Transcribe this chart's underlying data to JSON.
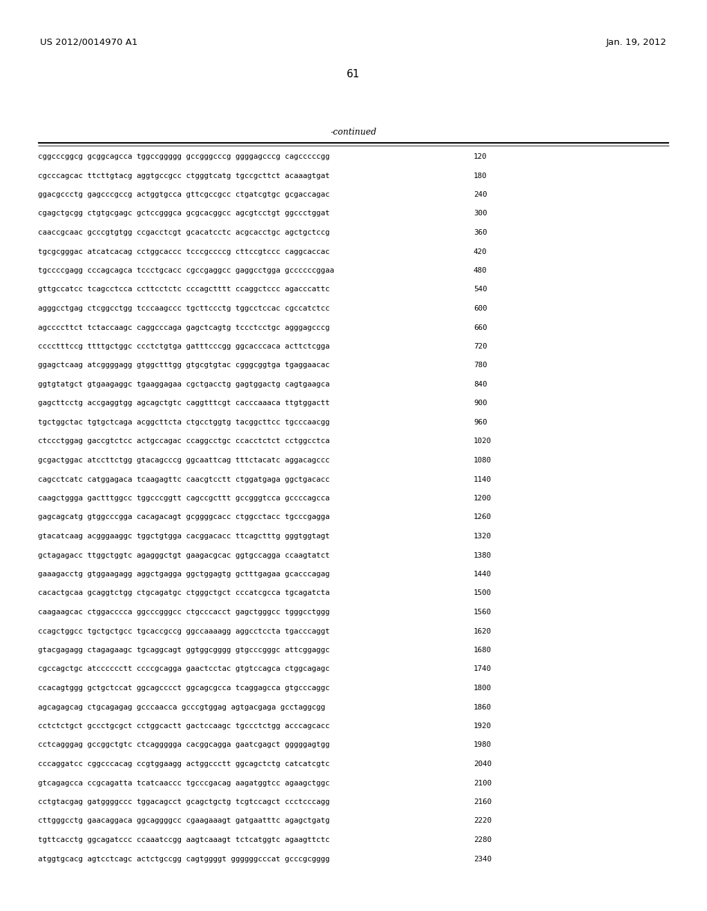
{
  "header_left": "US 2012/0014970 A1",
  "header_right": "Jan. 19, 2012",
  "page_number": "61",
  "continued_label": "-continued",
  "background_color": "#ffffff",
  "text_color": "#000000",
  "rows": [
    {
      "seq": "cggcccggcg gcggcagcca tggccggggg gccgggcccg ggggagcccg cagcccccgg",
      "num": "120"
    },
    {
      "seq": "cgcccagcac ttcttgtacg aggtgccgcc ctgggtcatg tgccgcttct acaaagtgat",
      "num": "180"
    },
    {
      "seq": "ggacgccctg gagcccgccg actggtgcca gttcgccgcc ctgatcgtgc gcgaccagac",
      "num": "240"
    },
    {
      "seq": "cgagctgcgg ctgtgcgagc gctccgggca gcgcacggcc agcgtcctgt ggccctggat",
      "num": "300"
    },
    {
      "seq": "caaccgcaac gcccgtgtgg ccgacctcgt gcacatcctc acgcacctgc agctgctccg",
      "num": "360"
    },
    {
      "seq": "tgcgcgggac atcatcacag cctggcaccc tcccgccccg cttccgtccc caggcaccac",
      "num": "420"
    },
    {
      "seq": "tgccccgagg cccagcagca tccctgcacc cgccgaggcc gaggcctgga gccccccggaa",
      "num": "480"
    },
    {
      "seq": "gttgccatcc tcagcctcca ccttcctctc cccagctttt ccaggctccc agacccattc",
      "num": "540"
    },
    {
      "seq": "agggcctgag ctcggcctgg tcccaagccc tgcttccctg tggcctccac cgccatctcc",
      "num": "600"
    },
    {
      "seq": "agccccttct tctaccaagc caggcccaga gagctcagtg tccctcctgc agggagcccg",
      "num": "660"
    },
    {
      "seq": "cccctttccg ttttgctggc ccctctgtga gatttcccgg ggcacccaca acttctcgga",
      "num": "720"
    },
    {
      "seq": "ggagctcaag atcggggagg gtggctttgg gtgcgtgtac cgggcggtga tgaggaacac",
      "num": "780"
    },
    {
      "seq": "ggtgtatgct gtgaagaggc tgaaggagaa cgctgacctg gagtggactg cagtgaagca",
      "num": "840"
    },
    {
      "seq": "gagcttcctg accgaggtgg agcagctgtc caggtttcgt cacccaaaca ttgtggactt",
      "num": "900"
    },
    {
      "seq": "tgctggctac tgtgctcaga acggcttcta ctgcctggtg tacggcttcc tgcccaacgg",
      "num": "960"
    },
    {
      "seq": "ctccctggag gaccgtctcc actgccagac ccaggcctgc ccacctctct cctggcctca",
      "num": "1020"
    },
    {
      "seq": "gcgactggac atccttctgg gtacagcccg ggcaattcag tttctacatc aggacagccc",
      "num": "1080"
    },
    {
      "seq": "cagcctcatc catggagaca tcaagagttc caacgtcctt ctggatgaga ggctgacacc",
      "num": "1140"
    },
    {
      "seq": "caagctggga gactttggcc tggcccggtt cagccgcttt gccgggtcca gccccagcca",
      "num": "1200"
    },
    {
      "seq": "gagcagcatg gtggcccgga cacagacagt gcggggcacc ctggcctacc tgcccgagga",
      "num": "1260"
    },
    {
      "seq": "gtacatcaag acgggaaggc tggctgtgga cacggacacc ttcagctttg gggtggtagt",
      "num": "1320"
    },
    {
      "seq": "gctagagacc ttggctggtc agagggctgt gaagacgcac ggtgccagga ccaagtatct",
      "num": "1380"
    },
    {
      "seq": "gaaagacctg gtggaagagg aggctgagga ggctggagtg gctttgagaa gcacccagag",
      "num": "1440"
    },
    {
      "seq": "cacactgcaa gcaggtctgg ctgcagatgc ctgggctgct cccatcgcca tgcagatcta",
      "num": "1500"
    },
    {
      "seq": "caagaagcac ctggacccca ggcccgggcc ctgcccacct gagctgggcc tgggcctggg",
      "num": "1560"
    },
    {
      "seq": "ccagctggcc tgctgctgcc tgcaccgccg ggccaaaagg aggcctccta tgacccaggt",
      "num": "1620"
    },
    {
      "seq": "gtacgagagg ctagagaagc tgcaggcagt ggtggcgggg gtgcccgggc attcggaggc",
      "num": "1680"
    },
    {
      "seq": "cgccagctgc atcccccctt ccccgcagga gaactcctac gtgtccagca ctggcagagc",
      "num": "1740"
    },
    {
      "seq": "ccacagtggg gctgctccat ggcagcccct ggcagcgcca tcaggagcca gtgcccaggc",
      "num": "1800"
    },
    {
      "seq": "agcagagcag ctgcagagag gcccaacca gcccgtggag agtgacgaga gcctaggcgg",
      "num": "1860"
    },
    {
      "seq": "cctctctgct gccctgcgct cctggcactt gactccaagc tgccctctgg acccagcacc",
      "num": "1920"
    },
    {
      "seq": "cctcagggag gccggctgtc ctcaggggga cacggcagga gaatcgagct gggggagtgg",
      "num": "1980"
    },
    {
      "seq": "cccaggatcc cggcccacag ccgtggaagg actggccctt ggcagctctg catcatcgtc",
      "num": "2040"
    },
    {
      "seq": "gtcagagcca ccgcagatta tcatcaaccc tgcccgacag aagatggtcc agaagctggc",
      "num": "2100"
    },
    {
      "seq": "cctgtacgag gatggggccc tggacagcct gcagctgctg tcgtccagct ccctcccagg",
      "num": "2160"
    },
    {
      "seq": "cttgggcctg gaacaggaca ggcaggggcc cgaagaaagt gatgaatttc agagctgatg",
      "num": "2220"
    },
    {
      "seq": "tgttcacctg ggcagatccc ccaaatccgg aagtcaaagt tctcatggtc agaagttctc",
      "num": "2280"
    },
    {
      "seq": "atggtgcacg agtcctcagc actctgccgg cagtggggt ggggggcccat gcccgcgggg",
      "num": "2340"
    }
  ],
  "header_font_size": 9.5,
  "page_num_font_size": 11,
  "continued_font_size": 9.0,
  "seq_font_size": 7.8,
  "num_font_size": 7.8
}
